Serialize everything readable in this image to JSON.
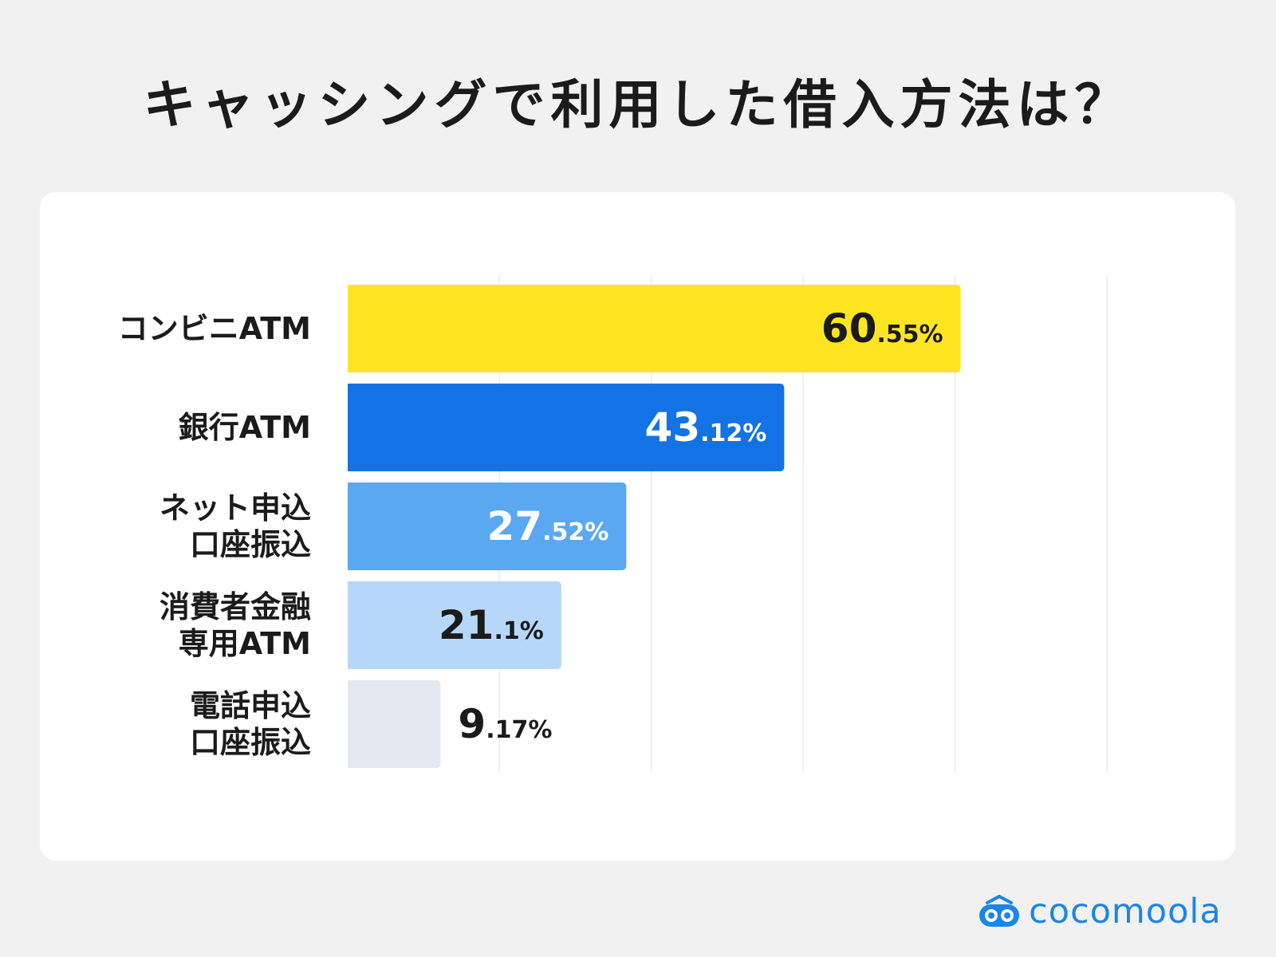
{
  "title": "キャッシングで利用した借入方法は？",
  "brand": {
    "name": "cocomoola",
    "color": "#1a86e8"
  },
  "chart_data": {
    "type": "bar",
    "orientation": "horizontal",
    "title": "キャッシングで利用した借入方法は？",
    "xlim": [
      0,
      75
    ],
    "grid": true,
    "categories": [
      [
        "コンビニATM"
      ],
      [
        "銀行ATM"
      ],
      [
        "ネット申込",
        "口座振込"
      ],
      [
        "消費者金融",
        "専用ATM"
      ],
      [
        "電話申込",
        "口座振込"
      ]
    ],
    "values": [
      60.55,
      43.12,
      27.52,
      21.1,
      9.17
    ],
    "value_labels": [
      {
        "int": "60",
        "dec": ".55%"
      },
      {
        "int": "43",
        "dec": ".12%"
      },
      {
        "int": "27",
        "dec": ".52%"
      },
      {
        "int": "21",
        "dec": ".1%"
      },
      {
        "int": "9",
        "dec": ".17%"
      }
    ],
    "colors": [
      "#ffe521",
      "#1373e5",
      "#5aa8f2",
      "#b6d7f8",
      "#e3e8f0"
    ],
    "label_colors": [
      "#1b1b1b",
      "#ffffff",
      "#ffffff",
      "#1b1b1b",
      "#1b1b1b"
    ]
  }
}
